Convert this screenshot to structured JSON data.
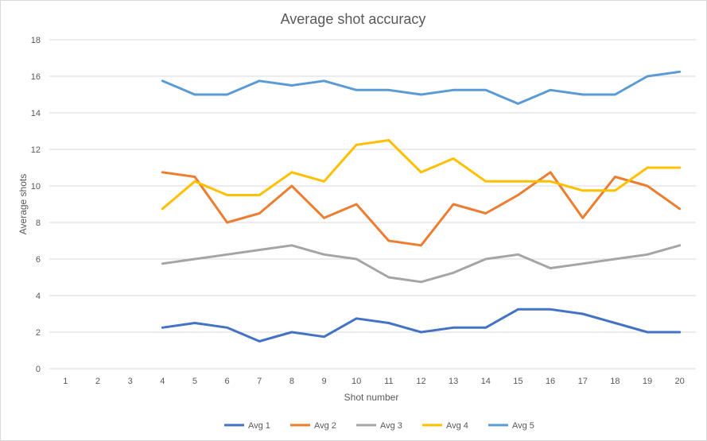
{
  "chart_data": {
    "type": "line",
    "title": "Average shot accuracy",
    "xlabel": "Shot number",
    "ylabel": "Average shots",
    "ylim": [
      0,
      18
    ],
    "yticks": [
      0,
      2,
      4,
      6,
      8,
      10,
      12,
      14,
      16,
      18
    ],
    "categories": [
      "1",
      "2",
      "3",
      "4",
      "5",
      "6",
      "7",
      "8",
      "9",
      "10",
      "11",
      "12",
      "13",
      "14",
      "15",
      "16",
      "17",
      "18",
      "19",
      "20"
    ],
    "grid": "horizontal",
    "legend_position": "bottom",
    "series": [
      {
        "name": "Avg 1",
        "color": "#4472c4",
        "values": [
          null,
          null,
          null,
          2.25,
          2.5,
          2.25,
          1.5,
          2.0,
          1.75,
          2.75,
          2.5,
          2.0,
          2.25,
          2.25,
          3.25,
          3.25,
          3.0,
          2.5,
          2.0,
          2.0
        ]
      },
      {
        "name": "Avg 2",
        "color": "#ed7d31",
        "values": [
          null,
          null,
          null,
          10.75,
          10.5,
          8.0,
          8.5,
          10.0,
          8.25,
          9.0,
          7.0,
          6.75,
          9.0,
          8.5,
          9.5,
          10.75,
          8.25,
          10.5,
          10.0,
          8.75
        ]
      },
      {
        "name": "Avg 3",
        "color": "#a5a5a5",
        "values": [
          null,
          null,
          null,
          5.75,
          6.0,
          6.25,
          6.5,
          6.75,
          6.25,
          6.0,
          5.0,
          4.75,
          5.25,
          6.0,
          6.25,
          5.5,
          5.75,
          6.0,
          6.25,
          6.75
        ]
      },
      {
        "name": "Avg 4",
        "color": "#ffc000",
        "values": [
          null,
          null,
          null,
          8.75,
          10.25,
          9.5,
          9.5,
          10.75,
          10.25,
          12.25,
          12.5,
          10.75,
          11.5,
          10.25,
          10.25,
          10.25,
          9.75,
          9.75,
          11.0,
          11.0
        ]
      },
      {
        "name": "Avg 5",
        "color": "#5b9bd5",
        "values": [
          null,
          null,
          null,
          15.75,
          15.0,
          15.0,
          15.75,
          15.5,
          15.75,
          15.25,
          15.25,
          15.0,
          15.25,
          15.25,
          14.5,
          15.25,
          15.0,
          15.0,
          16.0,
          16.25
        ]
      }
    ]
  }
}
